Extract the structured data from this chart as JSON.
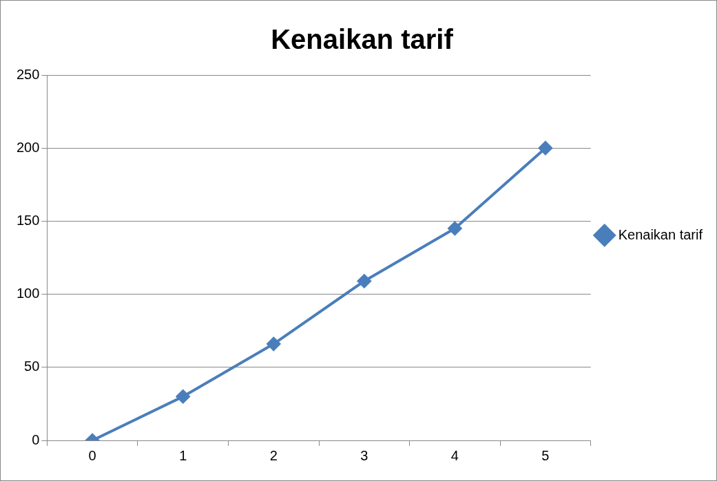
{
  "chart_data": {
    "type": "line",
    "title": "Kenaikan tarif",
    "categories": [
      "0",
      "1",
      "2",
      "3",
      "4",
      "5"
    ],
    "series": [
      {
        "name": "Kenaikan tarif",
        "color": "#4a7ebb",
        "values": [
          0,
          30,
          66,
          109,
          145,
          200
        ]
      }
    ],
    "ylim": [
      0,
      250
    ],
    "yticks": [
      0,
      50,
      100,
      150,
      200,
      250
    ],
    "grid": "y",
    "legend": "right",
    "marker": "diamond"
  }
}
